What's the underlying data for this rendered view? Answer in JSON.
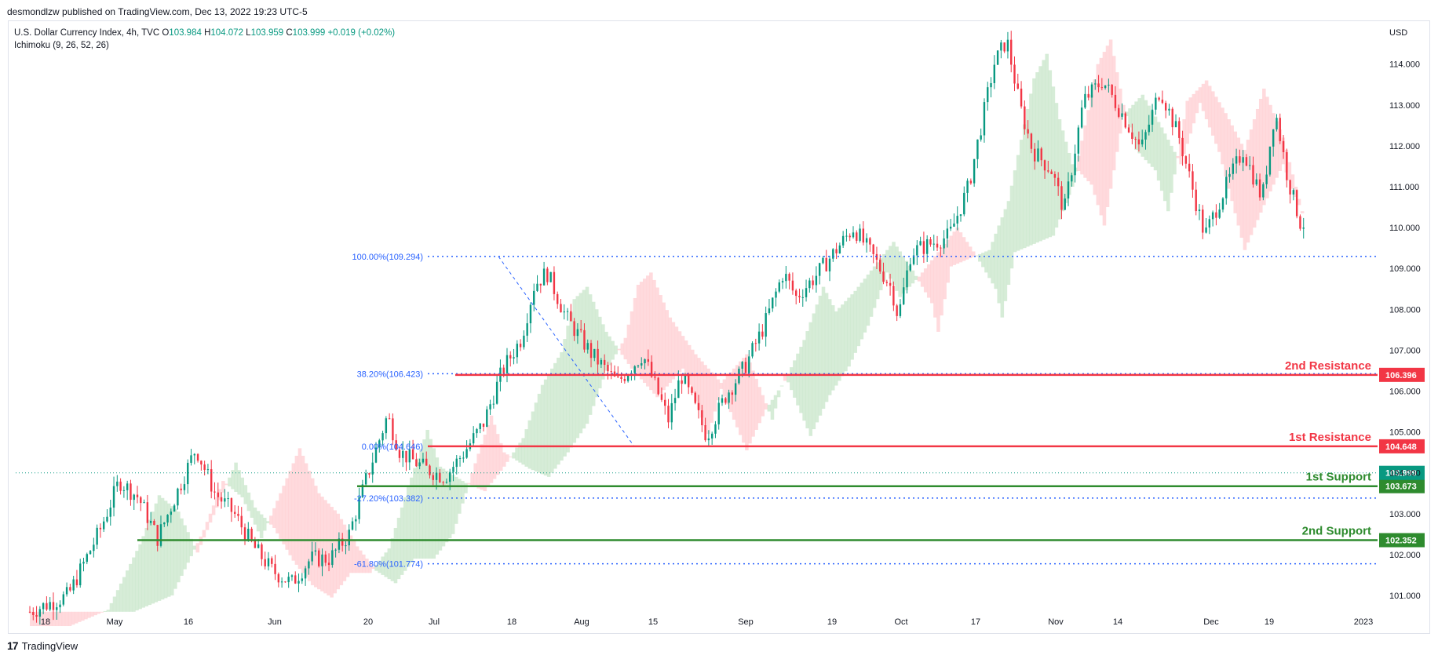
{
  "header": {
    "published": "desmondlzw published on TradingView.com, Dec 13, 2022 19:23 UTC-5"
  },
  "legend": {
    "symbol": "U.S. Dollar Currency Index, 4h, TVC",
    "o_label": "O",
    "o": "103.984",
    "h_label": "H",
    "h": "104.072",
    "l_label": "L",
    "l": "103.959",
    "c_label": "C",
    "c": "103.999",
    "change": "+0.019 (+0.02%)",
    "indicator": "Ichimoku (9, 26, 52, 26)"
  },
  "currency": "USD",
  "brand": {
    "name": "TradingView",
    "logo": "17"
  },
  "colors": {
    "up": "#089981",
    "down": "#f23645",
    "fib": "#2962ff",
    "resistance": "#f23645",
    "support": "#2e8b2e",
    "cloud_bull": "#c8e6c9",
    "cloud_bear": "#ffcdd2",
    "price_line": "#089981"
  },
  "chart_data": {
    "type": "candlestick",
    "y_axis": {
      "min": 100.5,
      "max": 114.8,
      "ticks": [
        101.0,
        102.0,
        103.0,
        104.0,
        105.0,
        106.0,
        107.0,
        108.0,
        109.0,
        110.0,
        111.0,
        112.0,
        113.0,
        114.0
      ]
    },
    "x_labels": [
      "18",
      "May",
      "16",
      "Jun",
      "20",
      "Jul",
      "18",
      "Aug",
      "15",
      "Sep",
      "19",
      "Oct",
      "17",
      "Nov",
      "14",
      "Dec",
      "19",
      "2023"
    ],
    "current_price": "103.999",
    "fibonacci": [
      {
        "label": "100.00%(109.294)",
        "value": 109.294
      },
      {
        "label": "38.20%(106.423)",
        "value": 106.423
      },
      {
        "label": "0.00%(104.646)",
        "value": 104.646
      },
      {
        "label": "-27.20%(103.382)",
        "value": 103.382
      },
      {
        "label": "-61.80%(101.774)",
        "value": 101.774
      }
    ],
    "levels": [
      {
        "name": "2nd Resistance",
        "value": 106.396,
        "badge": "106.396",
        "kind": "resistance"
      },
      {
        "name": "1st Resistance",
        "value": 104.648,
        "badge": "104.648",
        "kind": "resistance"
      },
      {
        "name": "1st Support",
        "value": 103.673,
        "badge": "103.673",
        "kind": "support"
      },
      {
        "name": "2nd Support",
        "value": 102.352,
        "badge": "102.352",
        "kind": "support"
      }
    ],
    "price_path": [
      [
        0,
        100.6
      ],
      [
        0.03,
        101.0
      ],
      [
        0.055,
        102.6
      ],
      [
        0.07,
        103.8
      ],
      [
        0.085,
        103.4
      ],
      [
        0.1,
        102.4
      ],
      [
        0.115,
        103.5
      ],
      [
        0.13,
        104.6
      ],
      [
        0.145,
        103.5
      ],
      [
        0.16,
        103.0
      ],
      [
        0.175,
        102.2
      ],
      [
        0.19,
        101.6
      ],
      [
        0.205,
        101.3
      ],
      [
        0.22,
        101.9
      ],
      [
        0.235,
        101.9
      ],
      [
        0.25,
        102.5
      ],
      [
        0.265,
        104.0
      ],
      [
        0.28,
        105.4
      ],
      [
        0.29,
        104.5
      ],
      [
        0.31,
        104.1
      ],
      [
        0.325,
        103.9
      ],
      [
        0.34,
        104.5
      ],
      [
        0.355,
        105.2
      ],
      [
        0.37,
        106.5
      ],
      [
        0.385,
        107.3
      ],
      [
        0.395,
        108.6
      ],
      [
        0.405,
        108.9
      ],
      [
        0.42,
        107.8
      ],
      [
        0.44,
        106.9
      ],
      [
        0.46,
        106.2
      ],
      [
        0.48,
        106.9
      ],
      [
        0.5,
        105.3
      ],
      [
        0.51,
        106.4
      ],
      [
        0.53,
        104.9
      ],
      [
        0.545,
        105.9
      ],
      [
        0.56,
        106.6
      ],
      [
        0.575,
        107.6
      ],
      [
        0.59,
        108.9
      ],
      [
        0.6,
        108.3
      ],
      [
        0.615,
        108.8
      ],
      [
        0.63,
        109.4
      ],
      [
        0.645,
        110.0
      ],
      [
        0.66,
        109.3
      ],
      [
        0.675,
        108.5
      ],
      [
        0.68,
        107.8
      ],
      [
        0.69,
        109.4
      ],
      [
        0.705,
        109.6
      ],
      [
        0.72,
        109.8
      ],
      [
        0.735,
        111.0
      ],
      [
        0.745,
        112.5
      ],
      [
        0.755,
        114.0
      ],
      [
        0.765,
        114.6
      ],
      [
        0.775,
        113.0
      ],
      [
        0.785,
        111.9
      ],
      [
        0.8,
        111.4
      ],
      [
        0.81,
        110.4
      ],
      [
        0.825,
        113.1
      ],
      [
        0.84,
        113.6
      ],
      [
        0.855,
        112.8
      ],
      [
        0.87,
        111.9
      ],
      [
        0.885,
        113.4
      ],
      [
        0.9,
        112.2
      ],
      [
        0.91,
        111.0
      ],
      [
        0.92,
        109.8
      ],
      [
        0.935,
        110.9
      ],
      [
        0.95,
        111.9
      ],
      [
        0.965,
        110.7
      ],
      [
        0.975,
        112.9
      ],
      [
        0.985,
        111.2
      ],
      [
        0.995,
        110.1
      ]
    ]
  }
}
